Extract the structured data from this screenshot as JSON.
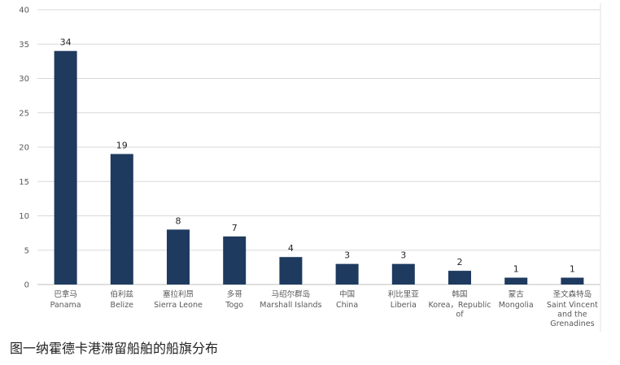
{
  "caption": "图一纳霍德卡港滞留船舶的船旗分布",
  "chart_data": {
    "type": "bar",
    "categories": [
      {
        "zh": "巴拿马",
        "en": [
          "Panama"
        ]
      },
      {
        "zh": "伯利兹",
        "en": [
          "Belize"
        ]
      },
      {
        "zh": "塞拉利昂",
        "en": [
          "Sierra Leone"
        ]
      },
      {
        "zh": "多哥",
        "en": [
          "Togo"
        ]
      },
      {
        "zh": "马绍尔群岛",
        "en": [
          "Marshall Islands"
        ]
      },
      {
        "zh": "中国",
        "en": [
          "China"
        ]
      },
      {
        "zh": "利比里亚",
        "en": [
          "Liberia"
        ]
      },
      {
        "zh": "韩国",
        "en": [
          "Korea，Republic",
          "of"
        ]
      },
      {
        "zh": "蒙古",
        "en": [
          "Mongolia"
        ]
      },
      {
        "zh": "圣文森特岛",
        "en": [
          "Saint Vincent",
          "and the",
          "Grenadines"
        ]
      }
    ],
    "values": [
      34,
      19,
      8,
      7,
      4,
      3,
      3,
      2,
      1,
      1
    ],
    "yticks": [
      0,
      5,
      10,
      15,
      20,
      25,
      30,
      35,
      40
    ],
    "ylim": [
      0,
      40
    ],
    "grid": true,
    "data_labels": true,
    "bar_color": "#1f3a5f"
  }
}
